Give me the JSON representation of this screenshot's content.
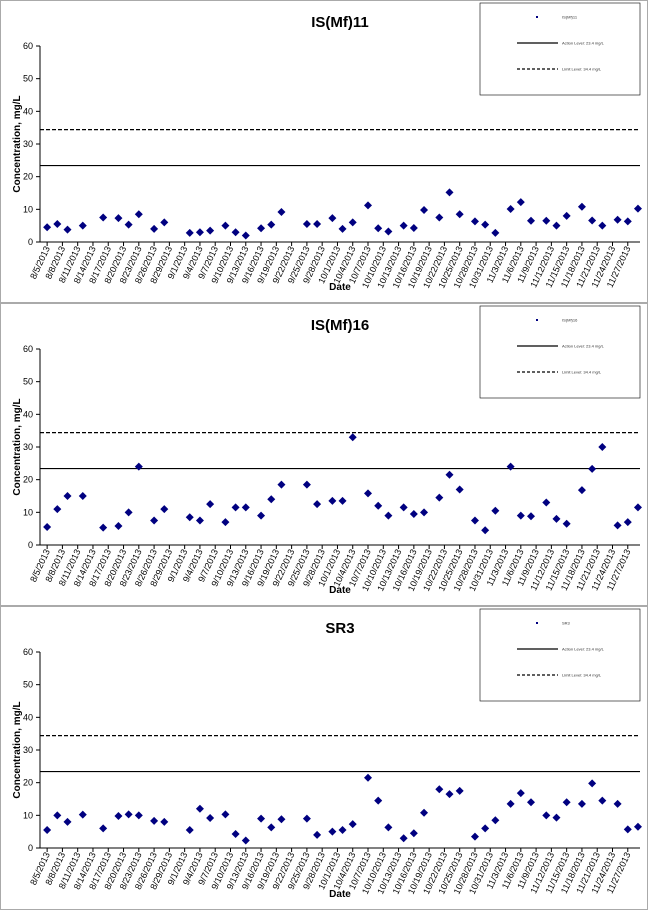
{
  "chart_data": [
    {
      "type": "scatter",
      "title": "IS(Mf)11",
      "xlabel": "Date",
      "ylabel": "Concentration, mg/L",
      "ylim": [
        0,
        60
      ],
      "yticks": [
        0,
        10,
        20,
        30,
        40,
        50,
        60
      ],
      "legend": "upper right",
      "xticks": [
        "8/5/2013",
        "8/8/2013",
        "8/11/2013",
        "8/14/2013",
        "8/17/2013",
        "8/20/2013",
        "8/23/2013",
        "8/26/2013",
        "8/29/2013",
        "9/1/2013",
        "9/4/2013",
        "9/7/2013",
        "9/10/2013",
        "9/13/2013",
        "9/16/2013",
        "9/19/2013",
        "9/22/2013",
        "9/25/2013",
        "9/28/2013",
        "10/1/2013",
        "10/4/2013",
        "10/7/2013",
        "10/10/2013",
        "10/13/2013",
        "10/16/2013",
        "10/19/2013",
        "10/22/2013",
        "10/25/2013",
        "10/28/2013",
        "10/31/2013",
        "11/3/2013",
        "11/6/2013",
        "11/9/2013",
        "11/12/2013",
        "11/15/2013",
        "11/18/2013",
        "11/21/2013",
        "11/24/2013",
        "11/27/2013"
      ],
      "series": [
        {
          "name": "IS(Mf)11",
          "color": "#000080",
          "x": [
            "8/5/2013",
            "8/7/2013",
            "8/9/2013",
            "8/12/2013",
            "8/16/2013",
            "8/19/2013",
            "8/21/2013",
            "8/23/2013",
            "8/26/2013",
            "8/28/2013",
            "9/2/2013",
            "9/4/2013",
            "9/6/2013",
            "9/9/2013",
            "9/11/2013",
            "9/13/2013",
            "9/16/2013",
            "9/18/2013",
            "9/20/2013",
            "9/25/2013",
            "9/27/2013",
            "9/30/2013",
            "10/2/2013",
            "10/4/2013",
            "10/7/2013",
            "10/9/2013",
            "10/11/2013",
            "10/14/2013",
            "10/16/2013",
            "10/18/2013",
            "10/21/2013",
            "10/23/2013",
            "10/25/2013",
            "10/28/2013",
            "10/30/2013",
            "11/1/2013",
            "11/4/2013",
            "11/6/2013",
            "11/8/2013",
            "11/11/2013",
            "11/13/2013",
            "11/15/2013",
            "11/18/2013",
            "11/20/2013",
            "11/22/2013",
            "11/25/2013",
            "11/27/2013",
            "11/29/2013"
          ],
          "values": [
            4.5,
            5.5,
            3.8,
            5,
            7.5,
            7.3,
            5.3,
            8.5,
            4,
            6,
            2.8,
            3,
            3.5,
            5,
            3,
            2,
            4.2,
            5.3,
            9.2,
            5.5,
            5.5,
            7.3,
            4,
            6,
            11.2,
            4.2,
            3.2,
            5,
            4.3,
            9.8,
            7.5,
            15.2,
            8.5,
            6.3,
            5.3,
            2.8,
            10.1,
            12.2,
            6.5,
            6.5,
            5,
            8,
            10.8,
            6.6,
            5,
            6.8,
            6.3,
            10.2
          ]
        }
      ],
      "lines": [
        {
          "name": "Action Level: 23.4 mg/L",
          "value": 23.4,
          "style": "solid"
        },
        {
          "name": "Limit Level: 34.4 mg/L",
          "value": 34.4,
          "style": "dashed"
        }
      ]
    },
    {
      "type": "scatter",
      "title": "IS(Mf)16",
      "xlabel": "Date",
      "ylabel": "Concentration, mg/L",
      "ylim": [
        0,
        60
      ],
      "yticks": [
        0,
        10,
        20,
        30,
        40,
        50,
        60
      ],
      "legend": "upper right",
      "xticks": [
        "8/5/2013",
        "8/8/2013",
        "8/11/2013",
        "8/14/2013",
        "8/17/2013",
        "8/20/2013",
        "8/23/2013",
        "8/26/2013",
        "8/29/2013",
        "9/1/2013",
        "9/4/2013",
        "9/7/2013",
        "9/10/2013",
        "9/13/2013",
        "9/16/2013",
        "9/19/2013",
        "9/22/2013",
        "9/25/2013",
        "9/28/2013",
        "10/1/2013",
        "10/4/2013",
        "10/7/2013",
        "10/10/2013",
        "10/13/2013",
        "10/16/2013",
        "10/19/2013",
        "10/22/2013",
        "10/25/2013",
        "10/28/2013",
        "10/31/2013",
        "11/3/2013",
        "11/6/2013",
        "11/9/2013",
        "11/12/2013",
        "11/15/2013",
        "11/18/2013",
        "11/21/2013",
        "11/24/2013",
        "11/27/2013"
      ],
      "series": [
        {
          "name": "IS(Mf)16",
          "color": "#000080",
          "x": [
            "8/5/2013",
            "8/7/2013",
            "8/9/2013",
            "8/12/2013",
            "8/16/2013",
            "8/19/2013",
            "8/21/2013",
            "8/23/2013",
            "8/26/2013",
            "8/28/2013",
            "9/2/2013",
            "9/4/2013",
            "9/6/2013",
            "9/9/2013",
            "9/11/2013",
            "9/13/2013",
            "9/16/2013",
            "9/18/2013",
            "9/20/2013",
            "9/25/2013",
            "9/27/2013",
            "9/30/2013",
            "10/2/2013",
            "10/4/2013",
            "10/7/2013",
            "10/9/2013",
            "10/11/2013",
            "10/14/2013",
            "10/16/2013",
            "10/18/2013",
            "10/21/2013",
            "10/23/2013",
            "10/25/2013",
            "10/28/2013",
            "10/30/2013",
            "11/1/2013",
            "11/4/2013",
            "11/6/2013",
            "11/8/2013",
            "11/11/2013",
            "11/13/2013",
            "11/15/2013",
            "11/18/2013",
            "11/20/2013",
            "11/22/2013",
            "11/25/2013",
            "11/27/2013",
            "11/29/2013"
          ],
          "values": [
            5.5,
            11,
            15,
            15,
            5.3,
            5.8,
            10,
            24,
            7.5,
            11,
            8.5,
            7.5,
            12.5,
            7,
            11.5,
            11.5,
            9,
            14,
            18.5,
            18.5,
            12.5,
            13.5,
            13.5,
            33,
            15.8,
            12,
            9,
            11.5,
            9.5,
            10,
            14.5,
            21.5,
            17,
            7.5,
            4.5,
            10.5,
            24,
            9,
            8.8,
            13,
            8,
            6.5,
            16.8,
            23.3,
            30,
            6,
            7,
            11.5
          ]
        }
      ],
      "lines": [
        {
          "name": "Action Level: 23.4 mg/L",
          "value": 23.4,
          "style": "solid"
        },
        {
          "name": "Limit Level: 34.4 mg/L",
          "value": 34.4,
          "style": "dashed"
        }
      ]
    },
    {
      "type": "scatter",
      "title": "SR3",
      "xlabel": "Date",
      "ylabel": "Concentration, mg/L",
      "ylim": [
        0,
        60
      ],
      "yticks": [
        0,
        10,
        20,
        30,
        40,
        50,
        60
      ],
      "legend": "upper right",
      "xticks": [
        "8/5/2013",
        "8/8/2013",
        "8/11/2013",
        "8/14/2013",
        "8/17/2013",
        "8/20/2013",
        "8/23/2013",
        "8/26/2013",
        "8/29/2013",
        "9/1/2013",
        "9/4/2013",
        "9/7/2013",
        "9/10/2013",
        "9/13/2013",
        "9/16/2013",
        "9/19/2013",
        "9/22/2013",
        "9/25/2013",
        "9/28/2013",
        "10/1/2013",
        "10/4/2013",
        "10/7/2013",
        "10/10/2013",
        "10/13/2013",
        "10/16/2013",
        "10/19/2013",
        "10/22/2013",
        "10/25/2013",
        "10/28/2013",
        "10/31/2013",
        "11/3/2013",
        "11/6/2013",
        "11/9/2013",
        "11/12/2013",
        "11/15/2013",
        "11/18/2013",
        "11/21/2013",
        "11/24/2013",
        "11/27/2013"
      ],
      "series": [
        {
          "name": "SR3",
          "color": "#000080",
          "x": [
            "8/5/2013",
            "8/7/2013",
            "8/9/2013",
            "8/12/2013",
            "8/16/2013",
            "8/19/2013",
            "8/21/2013",
            "8/23/2013",
            "8/26/2013",
            "8/28/2013",
            "9/2/2013",
            "9/4/2013",
            "9/6/2013",
            "9/9/2013",
            "9/11/2013",
            "9/13/2013",
            "9/16/2013",
            "9/18/2013",
            "9/20/2013",
            "9/25/2013",
            "9/27/2013",
            "9/30/2013",
            "10/2/2013",
            "10/4/2013",
            "10/7/2013",
            "10/9/2013",
            "10/11/2013",
            "10/14/2013",
            "10/16/2013",
            "10/18/2013",
            "10/21/2013",
            "10/23/2013",
            "10/25/2013",
            "10/28/2013",
            "10/30/2013",
            "11/1/2013",
            "11/4/2013",
            "11/6/2013",
            "11/8/2013",
            "11/11/2013",
            "11/13/2013",
            "11/15/2013",
            "11/18/2013",
            "11/20/2013",
            "11/22/2013",
            "11/25/2013",
            "11/27/2013",
            "11/29/2013"
          ],
          "values": [
            5.5,
            10,
            8,
            10.2,
            6,
            9.8,
            10.3,
            10,
            8.3,
            8,
            5.5,
            12,
            9.2,
            10.3,
            4.3,
            2.3,
            9,
            6.3,
            8.8,
            9,
            4,
            5,
            5.5,
            7.3,
            21.5,
            14.5,
            6.3,
            3,
            4.5,
            10.8,
            18,
            16.5,
            17.5,
            3.5,
            6,
            8.5,
            13.5,
            16.8,
            14,
            10,
            9.3,
            14,
            13.5,
            19.8,
            14.5,
            13.5,
            5.7,
            6.5
          ]
        }
      ],
      "lines": [
        {
          "name": "Action Level: 23.4 mg/L",
          "value": 23.4,
          "style": "solid"
        },
        {
          "name": "Limit Level: 34.4 mg/L",
          "value": 34.4,
          "style": "dashed"
        }
      ]
    }
  ]
}
